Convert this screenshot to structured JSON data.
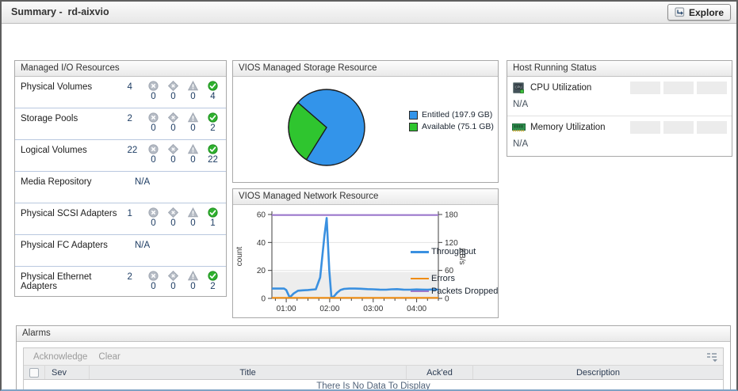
{
  "header": {
    "title": "Summary -  rd-aixvio",
    "explore_label": "Explore"
  },
  "io_resources": {
    "title": "Managed I/O Resources",
    "rows": [
      {
        "label": "Physical Volumes",
        "count": "4",
        "statuses": [
          {
            "severity": "fatal",
            "value": "0"
          },
          {
            "severity": "critical",
            "value": "0"
          },
          {
            "severity": "warning",
            "value": "0"
          },
          {
            "severity": "normal",
            "value": "4"
          }
        ]
      },
      {
        "label": "Storage Pools",
        "count": "2",
        "statuses": [
          {
            "severity": "fatal",
            "value": "0"
          },
          {
            "severity": "critical",
            "value": "0"
          },
          {
            "severity": "warning",
            "value": "0"
          },
          {
            "severity": "normal",
            "value": "2"
          }
        ]
      },
      {
        "label": "Logical Volumes",
        "count": "22",
        "statuses": [
          {
            "severity": "fatal",
            "value": "0"
          },
          {
            "severity": "critical",
            "value": "0"
          },
          {
            "severity": "warning",
            "value": "0"
          },
          {
            "severity": "normal",
            "value": "22"
          }
        ]
      },
      {
        "label": "Media Repository",
        "count": "N/A",
        "statuses": []
      },
      {
        "label": "Physical SCSI Adapters",
        "count": "1",
        "statuses": [
          {
            "severity": "fatal",
            "value": "0"
          },
          {
            "severity": "critical",
            "value": "0"
          },
          {
            "severity": "warning",
            "value": "0"
          },
          {
            "severity": "normal",
            "value": "1"
          }
        ]
      },
      {
        "label": "Physical FC Adapters",
        "count": "N/A",
        "statuses": []
      },
      {
        "label": "Physical Ethernet Adapters",
        "count": "2",
        "statuses": [
          {
            "severity": "fatal",
            "value": "0"
          },
          {
            "severity": "critical",
            "value": "0"
          },
          {
            "severity": "warning",
            "value": "0"
          },
          {
            "severity": "normal",
            "value": "2"
          }
        ]
      }
    ]
  },
  "storage_panel": {
    "title": "VIOS Managed Storage Resource"
  },
  "network_panel": {
    "title": "VIOS Managed Network Resource"
  },
  "host_status": {
    "title": "Host Running Status",
    "rows": [
      {
        "icon": "cpu-icon",
        "label": "CPU Utilization",
        "value": "N/A",
        "spark_placeholders": 3
      },
      {
        "icon": "memory-icon",
        "label": "Memory Utilization",
        "value": "N/A",
        "spark_placeholders": 3
      }
    ]
  },
  "alarms": {
    "title": "Alarms",
    "toolbar": {
      "acknowledge_label": "Acknowledge",
      "clear_label": "Clear"
    },
    "columns": [
      "Sev",
      "Title",
      "Ack'ed",
      "Description"
    ],
    "empty_message": "There Is No Data To Display"
  },
  "colors": {
    "status_normal": "#2fb12f",
    "status_inactive": "#b6bcc5",
    "pie_blue": "#3394ea",
    "pie_green": "#2fc52f",
    "line_blue": "#3a90e0",
    "line_orange": "#ef8c12",
    "line_purple": "#9b78cc"
  },
  "chart_data": [
    {
      "type": "pie",
      "title": "VIOS Managed Storage Resource",
      "slices": [
        {
          "label": "Entitled (197.9 GB)",
          "value": 197.9,
          "color": "#3394ea"
        },
        {
          "label": "Available (75.1 GB)",
          "value": 75.1,
          "color": "#2fc52f"
        }
      ],
      "legend_position": "right"
    },
    {
      "type": "line",
      "title": "VIOS Managed Network Resource",
      "ylabel_left": "count",
      "ylabel_right": "KB/s",
      "ylim_left": [
        0,
        60
      ],
      "ylim_right": [
        0,
        180
      ],
      "yticks_left": [
        0,
        20,
        40,
        60
      ],
      "yticks_right": [
        0,
        60,
        120,
        180
      ],
      "xticks": [
        "01:00",
        "02:00",
        "03:00",
        "04:00"
      ],
      "x_range_hours": [
        0.67,
        4.5
      ],
      "band": {
        "from": 0,
        "to": 19,
        "color": "#ededed"
      },
      "legend_position": "right",
      "series": [
        {
          "name": "Throughput",
          "color": "#3a90e0",
          "width": 2.6,
          "axis": "left",
          "x": [
            0.67,
            0.95,
            1.0,
            1.08,
            1.17,
            1.27,
            1.38,
            1.5,
            1.58,
            1.68,
            1.78,
            1.88,
            1.93,
            1.99,
            2.04,
            2.1,
            2.17,
            2.25,
            2.33,
            2.45,
            2.58,
            2.72,
            2.87,
            3.0,
            3.15,
            3.3,
            3.42,
            3.55,
            3.7,
            3.85,
            4.0,
            4.12,
            4.25,
            4.38,
            4.5
          ],
          "y": [
            7,
            7,
            6,
            0.6,
            3.5,
            5.5,
            5.8,
            6,
            6.2,
            6.5,
            15,
            45,
            57.5,
            20,
            0.6,
            1.5,
            4,
            6,
            6.8,
            7,
            7,
            6.9,
            6.6,
            6.5,
            6.3,
            6.2,
            6.5,
            6.6,
            6.3,
            6.2,
            6.4,
            6.3,
            6.2,
            6.4,
            6.3
          ]
        },
        {
          "name": "Errors",
          "color": "#ef8c12",
          "width": 2.2,
          "axis": "left",
          "x": [
            0.67,
            4.5
          ],
          "y": [
            0.4,
            0.4
          ]
        },
        {
          "name": "Packets Dropped",
          "color": "#9b78cc",
          "width": 2.2,
          "axis": "left",
          "x": [
            0.67,
            4.5
          ],
          "y": [
            59.6,
            59.6
          ]
        }
      ]
    }
  ]
}
